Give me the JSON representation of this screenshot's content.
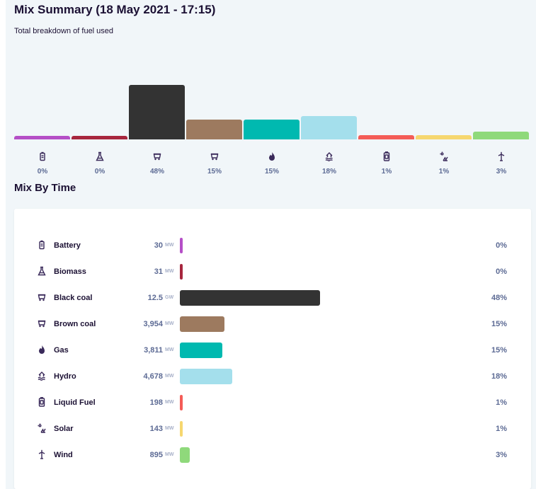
{
  "summary": {
    "title": "Mix Summary (18 May 2021 - 17:15)",
    "subtitle": "Total breakdown of fuel used"
  },
  "time_section": {
    "title": "Mix By Time"
  },
  "colors": {
    "battery": "#b54fc7",
    "biomass": "#a7263e",
    "black_coal": "#333333",
    "brown_coal": "#9d7a5f",
    "gas": "#00b9b0",
    "hydro": "#a4dfec",
    "liquid_fuel": "#f45c57",
    "solar": "#f6d76f",
    "wind": "#8fd97b"
  },
  "chart_data": {
    "type": "bar",
    "categories": [
      "Battery",
      "Biomass",
      "Black coal",
      "Brown coal",
      "Gas",
      "Hydro",
      "Liquid Fuel",
      "Solar",
      "Wind"
    ],
    "icons": [
      "battery-icon",
      "biomass-icon",
      "black-coal-icon",
      "brown-coal-icon",
      "gas-icon",
      "hydro-icon",
      "liquid-fuel-icon",
      "solar-icon",
      "wind-icon"
    ],
    "summary_percent_labels": [
      "0%",
      "0%",
      "48%",
      "15%",
      "15%",
      "18%",
      "1%",
      "1%",
      "3%"
    ],
    "summary_bar_heights_relative": [
      0.06,
      0.06,
      1.0,
      0.37,
      0.36,
      0.43,
      0.08,
      0.08,
      0.14
    ],
    "rows": [
      {
        "name": "Battery",
        "value": "30",
        "unit": "MW",
        "percent": "0%",
        "mw": 30
      },
      {
        "name": "Biomass",
        "value": "31",
        "unit": "MW",
        "percent": "0%",
        "mw": 31
      },
      {
        "name": "Black coal",
        "value": "12.5",
        "unit": "GW",
        "percent": "48%",
        "mw": 12500
      },
      {
        "name": "Brown coal",
        "value": "3,954",
        "unit": "MW",
        "percent": "15%",
        "mw": 3954
      },
      {
        "name": "Gas",
        "value": "3,811",
        "unit": "MW",
        "percent": "15%",
        "mw": 3811
      },
      {
        "name": "Hydro",
        "value": "4,678",
        "unit": "MW",
        "percent": "18%",
        "mw": 4678
      },
      {
        "name": "Liquid Fuel",
        "value": "198",
        "unit": "MW",
        "percent": "1%",
        "mw": 198
      },
      {
        "name": "Solar",
        "value": "143",
        "unit": "MW",
        "percent": "1%",
        "mw": 143
      },
      {
        "name": "Wind",
        "value": "895",
        "unit": "MW",
        "percent": "3%",
        "mw": 895
      }
    ]
  }
}
